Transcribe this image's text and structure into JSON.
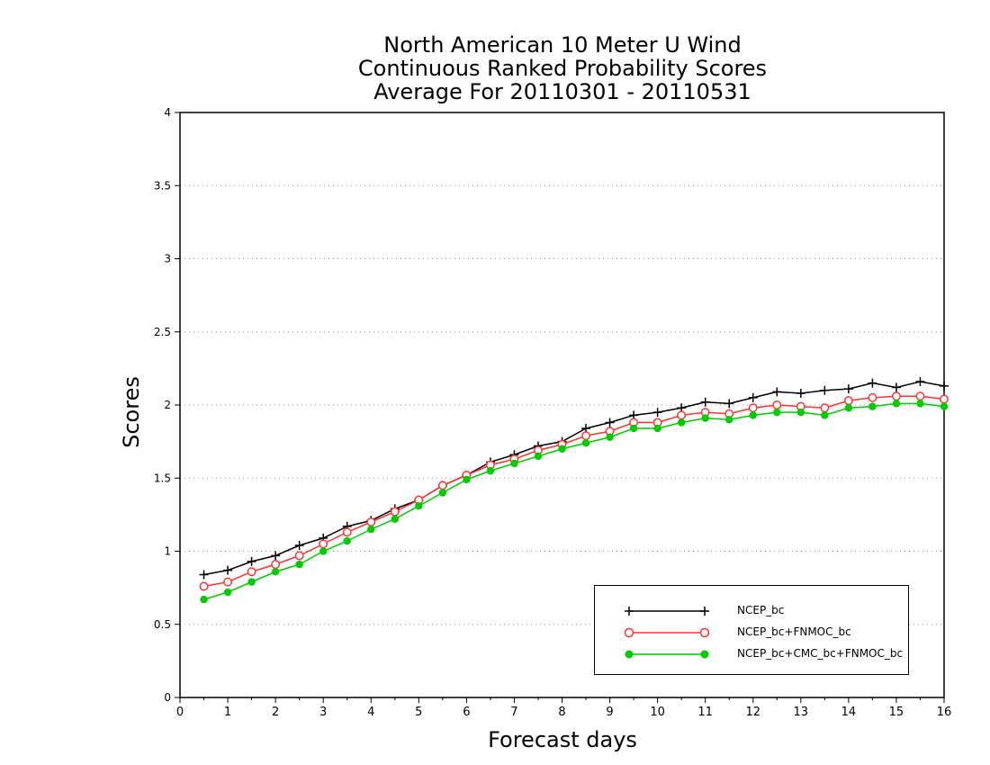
{
  "chart_data": {
    "type": "line",
    "title": [
      "North American 10 Meter U Wind",
      "Continuous Ranked Probability Scores",
      "Average For 20110301 - 20110531"
    ],
    "xlabel": "Forecast days",
    "ylabel": "Scores",
    "xlim": [
      0,
      16
    ],
    "ylim": [
      0,
      4
    ],
    "xticks": [
      "0",
      "1",
      "2",
      "3",
      "4",
      "5",
      "6",
      "7",
      "8",
      "9",
      "10",
      "11",
      "12",
      "13",
      "14",
      "15",
      "16"
    ],
    "yticks": [
      "0",
      "0.5",
      "1",
      "1.5",
      "2",
      "2.5",
      "3",
      "3.5",
      "4"
    ],
    "grid": "horizontal dotted",
    "legend_position": "bottom-right",
    "x": [
      0.5,
      1,
      1.5,
      2,
      2.5,
      3,
      3.5,
      4,
      4.5,
      5,
      5.5,
      6,
      6.5,
      7,
      7.5,
      8,
      8.5,
      9,
      9.5,
      10,
      10.5,
      11,
      11.5,
      12,
      12.5,
      13,
      13.5,
      14,
      14.5,
      15,
      15.5,
      16
    ],
    "series": [
      {
        "name": "NCEP_bc",
        "color": "#000000",
        "marker": "plus",
        "values": [
          0.84,
          0.87,
          0.93,
          0.97,
          1.04,
          1.09,
          1.17,
          1.21,
          1.29,
          1.35,
          1.45,
          1.52,
          1.61,
          1.66,
          1.72,
          1.75,
          1.84,
          1.88,
          1.93,
          1.95,
          1.98,
          2.02,
          2.01,
          2.05,
          2.09,
          2.08,
          2.1,
          2.11,
          2.15,
          2.12,
          2.16,
          2.13
        ]
      },
      {
        "name": "NCEP_bc+FNMOC_bc",
        "color": "#ff3333",
        "marker": "open-circle",
        "values": [
          0.76,
          0.79,
          0.86,
          0.91,
          0.97,
          1.05,
          1.13,
          1.2,
          1.27,
          1.35,
          1.45,
          1.52,
          1.59,
          1.63,
          1.69,
          1.73,
          1.79,
          1.82,
          1.88,
          1.88,
          1.93,
          1.95,
          1.94,
          1.98,
          2.0,
          1.99,
          1.98,
          2.03,
          2.05,
          2.06,
          2.06,
          2.04
        ]
      },
      {
        "name": "NCEP_bc+CMC_bc+FNMOC_bc",
        "color": "#00cc00",
        "marker": "filled-circle",
        "values": [
          0.67,
          0.72,
          0.79,
          0.86,
          0.91,
          1.0,
          1.07,
          1.15,
          1.22,
          1.31,
          1.4,
          1.49,
          1.55,
          1.6,
          1.65,
          1.7,
          1.74,
          1.78,
          1.84,
          1.84,
          1.88,
          1.91,
          1.9,
          1.93,
          1.95,
          1.95,
          1.93,
          1.98,
          1.99,
          2.01,
          2.01,
          1.99
        ]
      }
    ]
  }
}
